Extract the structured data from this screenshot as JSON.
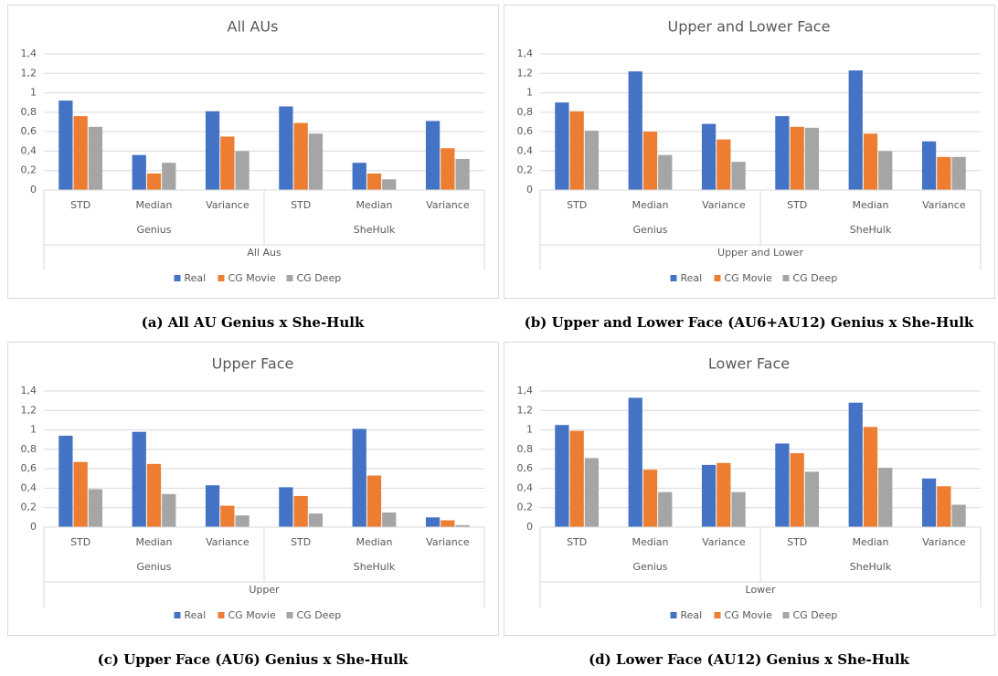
{
  "chart_data": [
    {
      "type": "bar",
      "title": "All AUs",
      "caption": "(a) All AU Genius x She-Hulk",
      "categories": [
        "STD",
        "Median",
        "Variance",
        "STD",
        "Median",
        "Variance"
      ],
      "groups": [
        "Genius",
        "SheHulk"
      ],
      "axis_label": "All Aus",
      "series": [
        {
          "name": "Real",
          "color": "#4472c4",
          "values": [
            0.92,
            0.36,
            0.81,
            0.86,
            0.28,
            0.71
          ]
        },
        {
          "name": "CG Movie",
          "color": "#ed7d31",
          "values": [
            0.76,
            0.17,
            0.55,
            0.69,
            0.17,
            0.43
          ]
        },
        {
          "name": "CG Deep",
          "color": "#a5a5a5",
          "values": [
            0.65,
            0.28,
            0.4,
            0.58,
            0.11,
            0.32
          ]
        }
      ],
      "ylim": [
        0,
        1.4
      ],
      "yticks": [
        0,
        {
          "value": 0.2,
          "label": "0,2"
        },
        {
          "value": 0.4,
          "label": "0,4"
        },
        {
          "value": 0.6,
          "label": "0,6"
        },
        {
          "value": 0.8,
          "label": "0,8"
        },
        1,
        {
          "value": 1.2,
          "label": "1,2"
        },
        {
          "value": 1.4,
          "label": "1,4"
        }
      ],
      "grid": true,
      "legend": "bottom"
    },
    {
      "type": "bar",
      "title": "Upper and Lower Face",
      "caption": "(b) Upper and Lower Face (AU6+AU12) Genius x She-Hulk",
      "categories": [
        "STD",
        "Median",
        "Variance",
        "STD",
        "Median",
        "Variance"
      ],
      "groups": [
        "Genius",
        "SheHulk"
      ],
      "axis_label": "Upper and Lower",
      "series": [
        {
          "name": "Real",
          "color": "#4472c4",
          "values": [
            0.9,
            1.22,
            0.68,
            0.76,
            1.23,
            0.5
          ]
        },
        {
          "name": "CG Movie",
          "color": "#ed7d31",
          "values": [
            0.81,
            0.6,
            0.52,
            0.65,
            0.58,
            0.34
          ]
        },
        {
          "name": "CG Deep",
          "color": "#a5a5a5",
          "values": [
            0.61,
            0.36,
            0.29,
            0.64,
            0.4,
            0.34
          ]
        }
      ],
      "ylim": [
        0,
        1.4
      ],
      "yticks": [
        0,
        {
          "value": 0.2,
          "label": "0,2"
        },
        {
          "value": 0.4,
          "label": "0,4"
        },
        {
          "value": 0.6,
          "label": "0,6"
        },
        {
          "value": 0.8,
          "label": "0,8"
        },
        1,
        {
          "value": 1.2,
          "label": "1,2"
        },
        {
          "value": 1.4,
          "label": "1,4"
        }
      ],
      "grid": true,
      "legend": "bottom"
    },
    {
      "type": "bar",
      "title": "Upper Face",
      "caption": "(c) Upper Face (AU6) Genius x She-Hulk",
      "categories": [
        "STD",
        "Median",
        "Variance",
        "STD",
        "Median",
        "Variance"
      ],
      "groups": [
        "Genius",
        "SheHulk"
      ],
      "axis_label": "Upper",
      "series": [
        {
          "name": "Real",
          "color": "#4472c4",
          "values": [
            0.94,
            0.98,
            0.43,
            0.41,
            1.01,
            0.1
          ]
        },
        {
          "name": "CG Movie",
          "color": "#ed7d31",
          "values": [
            0.67,
            0.65,
            0.22,
            0.32,
            0.53,
            0.07
          ]
        },
        {
          "name": "CG Deep",
          "color": "#a5a5a5",
          "values": [
            0.39,
            0.34,
            0.12,
            0.14,
            0.15,
            0.02
          ]
        }
      ],
      "ylim": [
        0,
        1.4
      ],
      "yticks": [
        0,
        {
          "value": 0.2,
          "label": "0,2"
        },
        {
          "value": 0.4,
          "label": "0,4"
        },
        {
          "value": 0.6,
          "label": "0,6"
        },
        {
          "value": 0.8,
          "label": "0,8"
        },
        1,
        {
          "value": 1.2,
          "label": "1,2"
        },
        {
          "value": 1.4,
          "label": "1,4"
        }
      ],
      "grid": true,
      "legend": "bottom"
    },
    {
      "type": "bar",
      "title": "Lower Face",
      "caption": "(d) Lower Face (AU12) Genius x She-Hulk",
      "categories": [
        "STD",
        "Median",
        "Variance",
        "STD",
        "Median",
        "Variance"
      ],
      "groups": [
        "Genius",
        "SheHulk"
      ],
      "axis_label": "Lower",
      "series": [
        {
          "name": "Real",
          "color": "#4472c4",
          "values": [
            1.05,
            1.33,
            0.64,
            0.86,
            1.28,
            0.5
          ]
        },
        {
          "name": "CG Movie",
          "color": "#ed7d31",
          "values": [
            0.99,
            0.59,
            0.66,
            0.76,
            1.03,
            0.42
          ]
        },
        {
          "name": "CG Deep",
          "color": "#a5a5a5",
          "values": [
            0.71,
            0.36,
            0.36,
            0.57,
            0.61,
            0.23
          ]
        }
      ],
      "ylim": [
        0,
        1.4
      ],
      "yticks": [
        0,
        {
          "value": 0.2,
          "label": "0,2"
        },
        {
          "value": 0.4,
          "label": "0,4"
        },
        {
          "value": 0.6,
          "label": "0,6"
        },
        {
          "value": 0.8,
          "label": "0,8"
        },
        1,
        {
          "value": 1.2,
          "label": "1,2"
        },
        {
          "value": 1.4,
          "label": "1,4"
        }
      ],
      "grid": true,
      "legend": "bottom"
    }
  ]
}
